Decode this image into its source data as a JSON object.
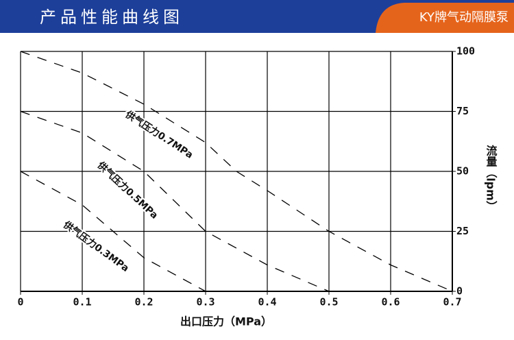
{
  "header": {
    "title": "产品性能曲线图",
    "brand": "KY牌气动隔膜泵"
  },
  "chart_data": {
    "type": "line",
    "xlabel": "出口压力（MPa）",
    "ylabel": "流量（lpm）",
    "xlim": [
      0,
      0.7
    ],
    "xticks": [
      0,
      0.1,
      0.2,
      0.3,
      0.4,
      0.5,
      0.6,
      0.7
    ],
    "ylim": [
      0,
      100
    ],
    "yticks": [
      0,
      25,
      50,
      75,
      100
    ],
    "grid": true,
    "series": [
      {
        "name": "供气压力0.7MPa",
        "color": "#000000",
        "x": [
          0,
          0.1,
          0.2,
          0.3,
          0.35,
          0.4,
          0.5,
          0.6,
          0.7
        ],
        "values": [
          100,
          91,
          78,
          62,
          50,
          42,
          25,
          11,
          0
        ]
      },
      {
        "name": "供气压力0.5MPa",
        "color": "#000000",
        "x": [
          0,
          0.1,
          0.2,
          0.3,
          0.4,
          0.5
        ],
        "values": [
          75,
          66,
          50,
          25,
          11,
          0
        ]
      },
      {
        "name": "供气压力0.3MPa",
        "color": "#000000",
        "x": [
          0,
          0.1,
          0.2,
          0.3
        ],
        "values": [
          50,
          36,
          14,
          0
        ]
      }
    ]
  }
}
